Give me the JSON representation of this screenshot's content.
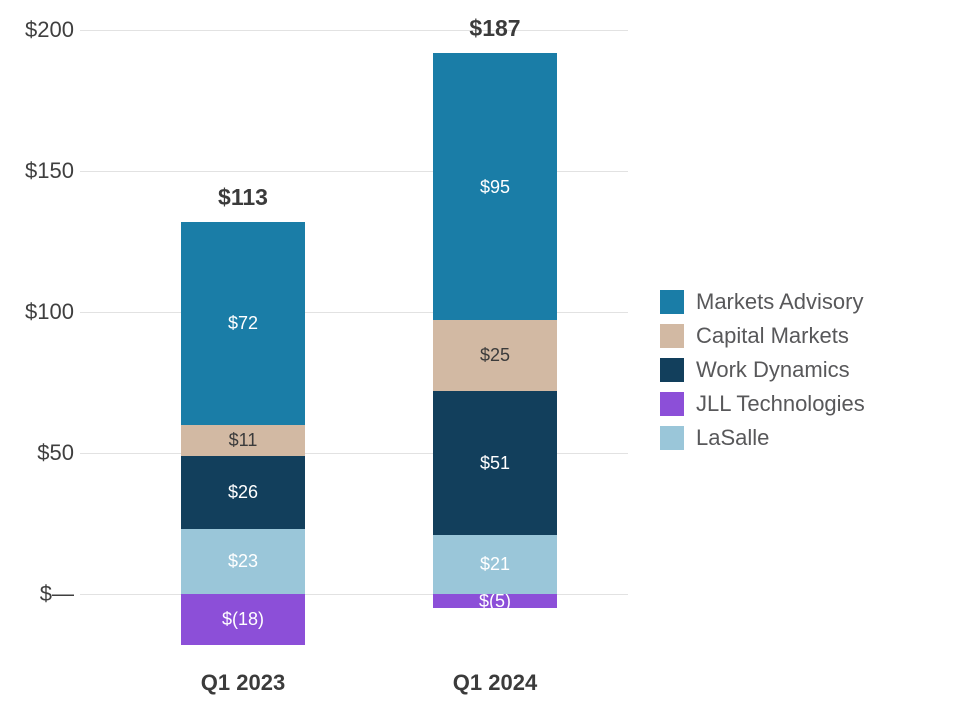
{
  "chart_data": {
    "type": "bar",
    "stacked": true,
    "categories": [
      "Q1 2023",
      "Q1 2024"
    ],
    "totals": [
      {
        "label": "$113",
        "value": 113
      },
      {
        "label": "$187",
        "value": 187
      }
    ],
    "series": [
      {
        "name": "Markets Advisory",
        "color": "#1a7da7",
        "label_color": "#ffffff",
        "values": [
          72,
          95
        ],
        "labels": [
          "$72",
          "$95"
        ]
      },
      {
        "name": "Capital Markets",
        "color": "#d2b9a3",
        "label_color": "#3b3b3b",
        "values": [
          11,
          25
        ],
        "labels": [
          "$11",
          "$25"
        ]
      },
      {
        "name": "Work Dynamics",
        "color": "#123f5c",
        "label_color": "#ffffff",
        "values": [
          26,
          51
        ],
        "labels": [
          "$26",
          "$51"
        ]
      },
      {
        "name": "JLL Technologies",
        "color": "#8c4fd8",
        "label_color": "#ffffff",
        "values": [
          -18,
          -5
        ],
        "labels": [
          "$(18)",
          "$(5)"
        ]
      },
      {
        "name": "LaSalle",
        "color": "#9ac6d9",
        "label_color": "#ffffff",
        "values": [
          23,
          21
        ],
        "labels": [
          "$23",
          "$21"
        ]
      }
    ],
    "y_ticks": [
      {
        "value": 200,
        "label": "$200"
      },
      {
        "value": 150,
        "label": "$150"
      },
      {
        "value": 100,
        "label": "$100"
      },
      {
        "value": 50,
        "label": "$50"
      },
      {
        "value": 0,
        "label": "$—"
      }
    ],
    "ylim": [
      -25,
      200
    ],
    "grid": true,
    "legend_position": "right"
  },
  "colors": {
    "axis_label": "#3f3f3f",
    "total_label": "#3b3b3b",
    "category_label": "#3b3b3b",
    "legend_label": "#58585a",
    "gridline": "#e2e2e2",
    "background": "#ffffff"
  }
}
